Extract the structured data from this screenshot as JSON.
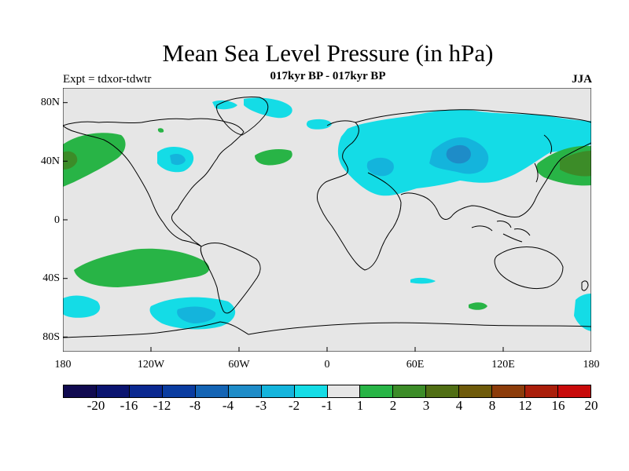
{
  "title": "Mean Sea Level Pressure (in hPa)",
  "subtitle": "017kyr BP - 017kyr BP",
  "experiment": "Expt = tdxor-tdwtr",
  "season": "JJA",
  "lat_labels": [
    "80N",
    "40N",
    "0",
    "40S",
    "80S"
  ],
  "lon_labels": [
    "180",
    "120W",
    "60W",
    "0",
    "60E",
    "120E",
    "180"
  ],
  "colorbar": {
    "labels": [
      "-20",
      "-16",
      "-12",
      "-8",
      "-4",
      "-3",
      "-2",
      "-1",
      "1",
      "2",
      "3",
      "4",
      "8",
      "12",
      "16",
      "20"
    ],
    "colors": [
      "#100a50",
      "#0a1470",
      "#0a2890",
      "#0a3ca0",
      "#1464b4",
      "#1e8cc8",
      "#14b4dc",
      "#14dce6",
      "#e6e6e6",
      "#28b446",
      "#3c8c28",
      "#506e14",
      "#6e5a0a",
      "#8c3c0a",
      "#aa1e0a",
      "#c80a0a"
    ]
  },
  "map_colors": {
    "background": "#e6e6e6",
    "ocean_fill": "#e6e6e6",
    "cyan": "#14dce6",
    "mid_blue": "#14b4dc",
    "blue": "#1e8cc8",
    "green": "#28b446",
    "dark_green": "#3c8c28"
  }
}
